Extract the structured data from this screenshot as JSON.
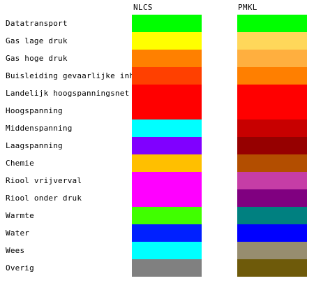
{
  "headers": {
    "nlcs": "NLCS",
    "pmkl": "PMKL"
  },
  "rows": [
    {
      "label": "Datatransport",
      "nlcs": "#00ff00",
      "pmkl": "#00ff00"
    },
    {
      "label": "Gas lage druk",
      "nlcs": "#ffff00",
      "pmkl": "#ffd75a"
    },
    {
      "label": "Gas hoge druk",
      "nlcs": "#ff8000",
      "pmkl": "#ffaf3f"
    },
    {
      "label": "Buisleiding gevaarlijke inhoud",
      "nlcs": "#ff4000",
      "pmkl": "#ff7f00"
    },
    {
      "label": "Landelijk hoogspanningsnet",
      "nlcs": "#ff0000",
      "pmkl": "#ff0000"
    },
    {
      "label": "Hoogspanning",
      "nlcs": "#ff0000",
      "pmkl": "#ff0000"
    },
    {
      "label": "Middenspanning",
      "nlcs": "#00ffff",
      "pmkl": "#c80000"
    },
    {
      "label": "Laagspanning",
      "nlcs": "#8000ff",
      "pmkl": "#960000"
    },
    {
      "label": "Chemie",
      "nlcs": "#ffbf00",
      "pmkl": "#b34e00"
    },
    {
      "label": "Riool vrijverval",
      "nlcs": "#ff00ff",
      "pmkl": "#c63da6"
    },
    {
      "label": "Riool onder druk",
      "nlcs": "#ff00ff",
      "pmkl": "#800080"
    },
    {
      "label": "Warmte",
      "nlcs": "#40ff00",
      "pmkl": "#008080"
    },
    {
      "label": "Water",
      "nlcs": "#0020ff",
      "pmkl": "#0000ff"
    },
    {
      "label": "Wees",
      "nlcs": "#00ffff",
      "pmkl": "#978d6f"
    },
    {
      "label": "Overig",
      "nlcs": "#808080",
      "pmkl": "#6e5a0a"
    }
  ]
}
